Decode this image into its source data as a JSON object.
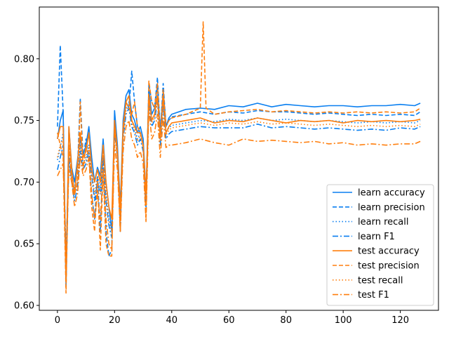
{
  "chart_data": {
    "type": "line",
    "title": "",
    "xlabel": "",
    "ylabel": "",
    "xlim": [
      -6.35,
      133.35
    ],
    "ylim": [
      0.596,
      0.842
    ],
    "xticks": [
      0,
      20,
      40,
      60,
      80,
      100,
      120
    ],
    "yticks": [
      0.6,
      0.65,
      0.7,
      0.75,
      0.8
    ],
    "xtick_labels": [
      "0",
      "20",
      "40",
      "60",
      "80",
      "100",
      "120"
    ],
    "ytick_labels": [
      "0.60",
      "0.65",
      "0.70",
      "0.75",
      "0.80"
    ],
    "grid": false,
    "legend_position": "lower-right",
    "colors": {
      "learn": "#0a7ff0",
      "test": "#ff7f0e"
    },
    "series": [
      {
        "name": "learn accuracy",
        "color": "#0a7ff0",
        "dash": "solid",
        "x": [
          0,
          1,
          2,
          3,
          4,
          5,
          6,
          7,
          8,
          9,
          10,
          11,
          12,
          13,
          14,
          15,
          16,
          17,
          18,
          19,
          20,
          21,
          22,
          23,
          24,
          25,
          26,
          27,
          28,
          29,
          30,
          31,
          32,
          33,
          34,
          35,
          36,
          37,
          38,
          39,
          40,
          45,
          50,
          55,
          60,
          65,
          70,
          75,
          80,
          85,
          90,
          95,
          100,
          105,
          110,
          115,
          120,
          125,
          127
        ],
        "y": [
          0.735,
          0.75,
          0.758,
          0.62,
          0.745,
          0.712,
          0.7,
          0.718,
          0.735,
          0.722,
          0.73,
          0.745,
          0.72,
          0.7,
          0.712,
          0.705,
          0.735,
          0.7,
          0.68,
          0.66,
          0.758,
          0.73,
          0.68,
          0.75,
          0.77,
          0.775,
          0.755,
          0.75,
          0.74,
          0.745,
          0.735,
          0.69,
          0.775,
          0.755,
          0.76,
          0.778,
          0.74,
          0.775,
          0.745,
          0.752,
          0.755,
          0.759,
          0.76,
          0.759,
          0.762,
          0.761,
          0.764,
          0.761,
          0.763,
          0.762,
          0.761,
          0.762,
          0.762,
          0.761,
          0.762,
          0.762,
          0.763,
          0.762,
          0.764
        ]
      },
      {
        "name": "learn precision",
        "color": "#0a7ff0",
        "dash": "dashed",
        "x": [
          0,
          1,
          2,
          3,
          4,
          5,
          6,
          7,
          8,
          9,
          10,
          11,
          12,
          13,
          14,
          15,
          16,
          17,
          18,
          19,
          20,
          21,
          22,
          23,
          24,
          25,
          26,
          27,
          28,
          29,
          30,
          31,
          32,
          33,
          34,
          35,
          36,
          37,
          38,
          39,
          40,
          45,
          50,
          55,
          60,
          65,
          70,
          75,
          80,
          85,
          90,
          95,
          100,
          105,
          110,
          115,
          120,
          125,
          127
        ],
        "y": [
          0.745,
          0.811,
          0.757,
          0.615,
          0.72,
          0.7,
          0.695,
          0.71,
          0.768,
          0.72,
          0.735,
          0.72,
          0.69,
          0.67,
          0.705,
          0.66,
          0.72,
          0.66,
          0.64,
          0.645,
          0.75,
          0.72,
          0.66,
          0.74,
          0.765,
          0.76,
          0.79,
          0.765,
          0.745,
          0.74,
          0.73,
          0.68,
          0.78,
          0.765,
          0.76,
          0.785,
          0.74,
          0.78,
          0.745,
          0.75,
          0.753,
          0.755,
          0.757,
          0.755,
          0.757,
          0.756,
          0.758,
          0.757,
          0.757,
          0.756,
          0.755,
          0.756,
          0.755,
          0.754,
          0.755,
          0.754,
          0.755,
          0.754,
          0.757
        ]
      },
      {
        "name": "learn recall",
        "color": "#0a7ff0",
        "dash": "dotted",
        "x": [
          0,
          1,
          2,
          3,
          4,
          5,
          6,
          7,
          8,
          9,
          10,
          11,
          12,
          13,
          14,
          15,
          16,
          17,
          18,
          19,
          20,
          21,
          22,
          23,
          24,
          25,
          26,
          27,
          28,
          29,
          30,
          31,
          32,
          33,
          34,
          35,
          36,
          37,
          38,
          39,
          40,
          45,
          50,
          55,
          60,
          65,
          70,
          75,
          80,
          85,
          90,
          95,
          100,
          105,
          110,
          115,
          120,
          125,
          127
        ],
        "y": [
          0.718,
          0.728,
          0.74,
          0.63,
          0.73,
          0.705,
          0.69,
          0.7,
          0.73,
          0.715,
          0.72,
          0.73,
          0.71,
          0.69,
          0.705,
          0.695,
          0.725,
          0.69,
          0.67,
          0.66,
          0.745,
          0.725,
          0.675,
          0.74,
          0.76,
          0.765,
          0.75,
          0.745,
          0.735,
          0.74,
          0.73,
          0.685,
          0.77,
          0.75,
          0.755,
          0.77,
          0.735,
          0.768,
          0.74,
          0.744,
          0.746,
          0.748,
          0.75,
          0.749,
          0.751,
          0.75,
          0.752,
          0.75,
          0.751,
          0.75,
          0.749,
          0.75,
          0.749,
          0.748,
          0.749,
          0.748,
          0.749,
          0.748,
          0.75
        ]
      },
      {
        "name": "learn F1",
        "color": "#0a7ff0",
        "dash": "dashdot",
        "x": [
          0,
          1,
          2,
          3,
          4,
          5,
          6,
          7,
          8,
          9,
          10,
          11,
          12,
          13,
          14,
          15,
          16,
          17,
          18,
          19,
          20,
          21,
          22,
          23,
          24,
          25,
          26,
          27,
          28,
          29,
          30,
          31,
          32,
          33,
          34,
          35,
          36,
          37,
          38,
          39,
          40,
          45,
          50,
          55,
          60,
          65,
          70,
          75,
          80,
          85,
          90,
          95,
          100,
          105,
          110,
          115,
          120,
          125,
          127
        ],
        "y": [
          0.71,
          0.72,
          0.73,
          0.64,
          0.72,
          0.7,
          0.685,
          0.695,
          0.725,
          0.71,
          0.715,
          0.725,
          0.705,
          0.685,
          0.7,
          0.69,
          0.72,
          0.685,
          0.665,
          0.655,
          0.74,
          0.72,
          0.67,
          0.735,
          0.755,
          0.76,
          0.745,
          0.74,
          0.73,
          0.735,
          0.725,
          0.68,
          0.765,
          0.745,
          0.75,
          0.765,
          0.73,
          0.762,
          0.735,
          0.739,
          0.741,
          0.743,
          0.745,
          0.744,
          0.744,
          0.744,
          0.747,
          0.744,
          0.745,
          0.744,
          0.743,
          0.744,
          0.743,
          0.742,
          0.743,
          0.742,
          0.744,
          0.743,
          0.745
        ]
      },
      {
        "name": "test accuracy",
        "color": "#ff7f0e",
        "dash": "solid",
        "x": [
          0,
          1,
          2,
          3,
          4,
          5,
          6,
          7,
          8,
          9,
          10,
          11,
          12,
          13,
          14,
          15,
          16,
          17,
          18,
          19,
          20,
          21,
          22,
          23,
          24,
          25,
          26,
          27,
          28,
          29,
          30,
          31,
          32,
          33,
          34,
          35,
          36,
          37,
          38,
          39,
          40,
          45,
          50,
          55,
          60,
          65,
          70,
          75,
          80,
          85,
          90,
          95,
          100,
          105,
          110,
          115,
          120,
          125,
          127
        ],
        "y": [
          0.735,
          0.745,
          0.745,
          0.62,
          0.745,
          0.71,
          0.69,
          0.715,
          0.74,
          0.72,
          0.725,
          0.74,
          0.71,
          0.7,
          0.71,
          0.7,
          0.73,
          0.7,
          0.68,
          0.67,
          0.75,
          0.725,
          0.675,
          0.745,
          0.765,
          0.77,
          0.75,
          0.745,
          0.74,
          0.74,
          0.73,
          0.69,
          0.77,
          0.75,
          0.755,
          0.77,
          0.735,
          0.77,
          0.74,
          0.745,
          0.748,
          0.75,
          0.752,
          0.748,
          0.75,
          0.749,
          0.752,
          0.75,
          0.748,
          0.75,
          0.749,
          0.75,
          0.748,
          0.75,
          0.749,
          0.75,
          0.749,
          0.75,
          0.751
        ]
      },
      {
        "name": "test precision",
        "color": "#ff7f0e",
        "dash": "dashed",
        "x": [
          0,
          1,
          2,
          3,
          4,
          5,
          6,
          7,
          8,
          9,
          10,
          11,
          12,
          13,
          14,
          15,
          16,
          17,
          18,
          19,
          20,
          21,
          22,
          23,
          24,
          25,
          26,
          27,
          28,
          29,
          30,
          31,
          32,
          33,
          34,
          35,
          36,
          37,
          38,
          39,
          40,
          45,
          48,
          50,
          51,
          52,
          55,
          60,
          65,
          70,
          75,
          80,
          85,
          90,
          95,
          100,
          105,
          110,
          115,
          120,
          125,
          127
        ],
        "y": [
          0.74,
          0.73,
          0.72,
          0.61,
          0.73,
          0.7,
          0.69,
          0.7,
          0.765,
          0.71,
          0.73,
          0.72,
          0.68,
          0.66,
          0.7,
          0.645,
          0.71,
          0.65,
          0.64,
          0.64,
          0.745,
          0.72,
          0.66,
          0.74,
          0.765,
          0.76,
          0.755,
          0.765,
          0.745,
          0.74,
          0.73,
          0.67,
          0.782,
          0.765,
          0.76,
          0.78,
          0.735,
          0.775,
          0.745,
          0.75,
          0.752,
          0.755,
          0.758,
          0.76,
          0.83,
          0.76,
          0.755,
          0.757,
          0.758,
          0.759,
          0.757,
          0.758,
          0.757,
          0.756,
          0.757,
          0.756,
          0.757,
          0.756,
          0.757,
          0.756,
          0.757,
          0.76
        ]
      },
      {
        "name": "test recall",
        "color": "#ff7f0e",
        "dash": "dotted",
        "x": [
          0,
          1,
          2,
          3,
          4,
          5,
          6,
          7,
          8,
          9,
          10,
          11,
          12,
          13,
          14,
          15,
          16,
          17,
          18,
          19,
          20,
          21,
          22,
          23,
          24,
          25,
          26,
          27,
          28,
          29,
          30,
          31,
          32,
          33,
          34,
          35,
          36,
          37,
          38,
          39,
          40,
          45,
          50,
          55,
          60,
          65,
          70,
          75,
          80,
          85,
          90,
          95,
          100,
          105,
          110,
          115,
          120,
          125,
          127
        ],
        "y": [
          0.72,
          0.73,
          0.735,
          0.625,
          0.73,
          0.705,
          0.69,
          0.7,
          0.73,
          0.712,
          0.718,
          0.728,
          0.705,
          0.69,
          0.703,
          0.69,
          0.722,
          0.688,
          0.668,
          0.66,
          0.742,
          0.722,
          0.672,
          0.738,
          0.758,
          0.762,
          0.748,
          0.742,
          0.733,
          0.738,
          0.728,
          0.684,
          0.768,
          0.748,
          0.752,
          0.768,
          0.733,
          0.765,
          0.738,
          0.742,
          0.744,
          0.746,
          0.748,
          0.746,
          0.748,
          0.747,
          0.749,
          0.747,
          0.748,
          0.747,
          0.746,
          0.747,
          0.746,
          0.745,
          0.746,
          0.745,
          0.746,
          0.745,
          0.747
        ]
      },
      {
        "name": "test F1",
        "color": "#ff7f0e",
        "dash": "dashdot",
        "x": [
          0,
          1,
          2,
          3,
          4,
          5,
          6,
          7,
          8,
          9,
          10,
          11,
          12,
          13,
          14,
          15,
          16,
          17,
          18,
          19,
          20,
          21,
          22,
          23,
          24,
          25,
          26,
          27,
          28,
          29,
          30,
          31,
          32,
          33,
          34,
          35,
          36,
          37,
          38,
          39,
          40,
          45,
          50,
          55,
          60,
          65,
          70,
          75,
          80,
          85,
          90,
          95,
          100,
          105,
          110,
          115,
          120,
          125,
          127
        ],
        "y": [
          0.705,
          0.71,
          0.715,
          0.635,
          0.71,
          0.7,
          0.68,
          0.69,
          0.72,
          0.705,
          0.71,
          0.72,
          0.69,
          0.67,
          0.69,
          0.67,
          0.71,
          0.67,
          0.65,
          0.645,
          0.73,
          0.71,
          0.66,
          0.725,
          0.745,
          0.75,
          0.735,
          0.73,
          0.72,
          0.725,
          0.715,
          0.668,
          0.76,
          0.735,
          0.74,
          0.755,
          0.72,
          0.752,
          0.728,
          0.73,
          0.73,
          0.732,
          0.735,
          0.732,
          0.73,
          0.735,
          0.733,
          0.734,
          0.733,
          0.732,
          0.733,
          0.731,
          0.732,
          0.73,
          0.731,
          0.73,
          0.731,
          0.731,
          0.733
        ]
      }
    ]
  }
}
